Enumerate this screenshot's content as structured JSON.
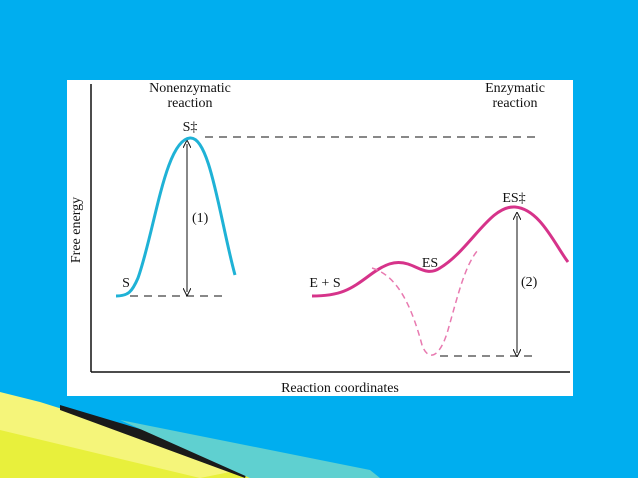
{
  "diagram": {
    "left_heading": [
      "Nonenzymatic",
      "reaction"
    ],
    "right_heading": [
      "Enzymatic",
      "reaction"
    ],
    "y_axis_label": "Free energy",
    "x_axis_label": "Reaction coordinates",
    "labels": {
      "s_transition": "S‡",
      "es_transition": "ES‡",
      "barrier_1": "(1)",
      "barrier_2": "(2)",
      "substrate": "S",
      "enzyme_substrate": "E + S",
      "complex": "ES"
    }
  }
}
